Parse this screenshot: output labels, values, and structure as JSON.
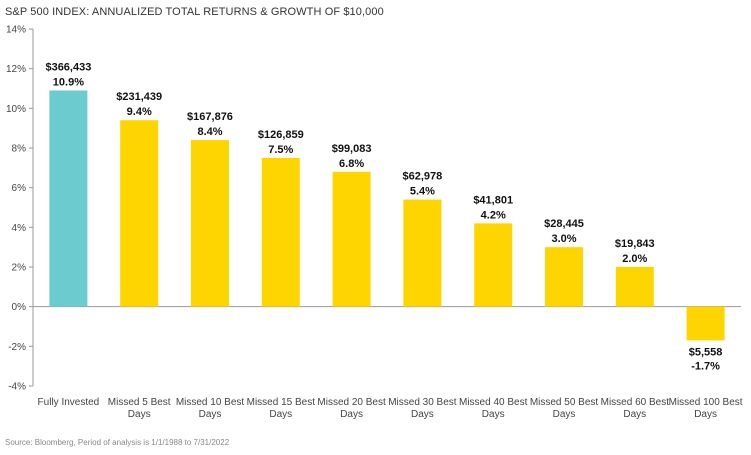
{
  "chart_data": {
    "type": "bar",
    "title": "S&P 500 INDEX: ANNUALIZED TOTAL RETURNS & GROWTH OF $10,000",
    "xlabel": "",
    "ylabel": "",
    "ylim": [
      -4,
      14
    ],
    "yticks": [
      -4,
      -2,
      0,
      2,
      4,
      6,
      8,
      10,
      12,
      14
    ],
    "ytick_labels": [
      "-4%",
      "-2%",
      "0%",
      "2%",
      "4%",
      "6%",
      "8%",
      "10%",
      "12%",
      "14%"
    ],
    "grid": false,
    "legend": "none",
    "categories": [
      [
        "Fully Invested"
      ],
      [
        "Missed 5 Best",
        "Days"
      ],
      [
        "Missed 10 Best",
        "Days"
      ],
      [
        "Missed 15 Best",
        "Days"
      ],
      [
        "Missed 20 Best",
        "Days"
      ],
      [
        "Missed 30 Best",
        "Days"
      ],
      [
        "Missed 40 Best",
        "Days"
      ],
      [
        "Missed 50 Best",
        "Days"
      ],
      [
        "Missed 60 Best",
        "Days"
      ],
      [
        "Missed 100 Best",
        "Days"
      ]
    ],
    "values": [
      10.9,
      9.4,
      8.4,
      7.5,
      6.8,
      5.4,
      4.2,
      3.0,
      2.0,
      -1.7
    ],
    "value_labels": [
      "10.9%",
      "9.4%",
      "8.4%",
      "7.5%",
      "6.8%",
      "5.4%",
      "4.2%",
      "3.0%",
      "2.0%",
      "-1.7%"
    ],
    "growth_labels": [
      "$366,433",
      "$231,439",
      "$167,876",
      "$126,859",
      "$99,083",
      "$62,978",
      "$41,801",
      "$28,445",
      "$19,843",
      "$5,558"
    ],
    "colors": [
      "#6ccbcf",
      "#ffd500",
      "#ffd500",
      "#ffd500",
      "#ffd500",
      "#ffd500",
      "#ffd500",
      "#ffd500",
      "#ffd500",
      "#ffd500"
    ],
    "source": "Source: Bloomberg, Period of analysis is 1/1/1988 to 7/31/2022"
  }
}
